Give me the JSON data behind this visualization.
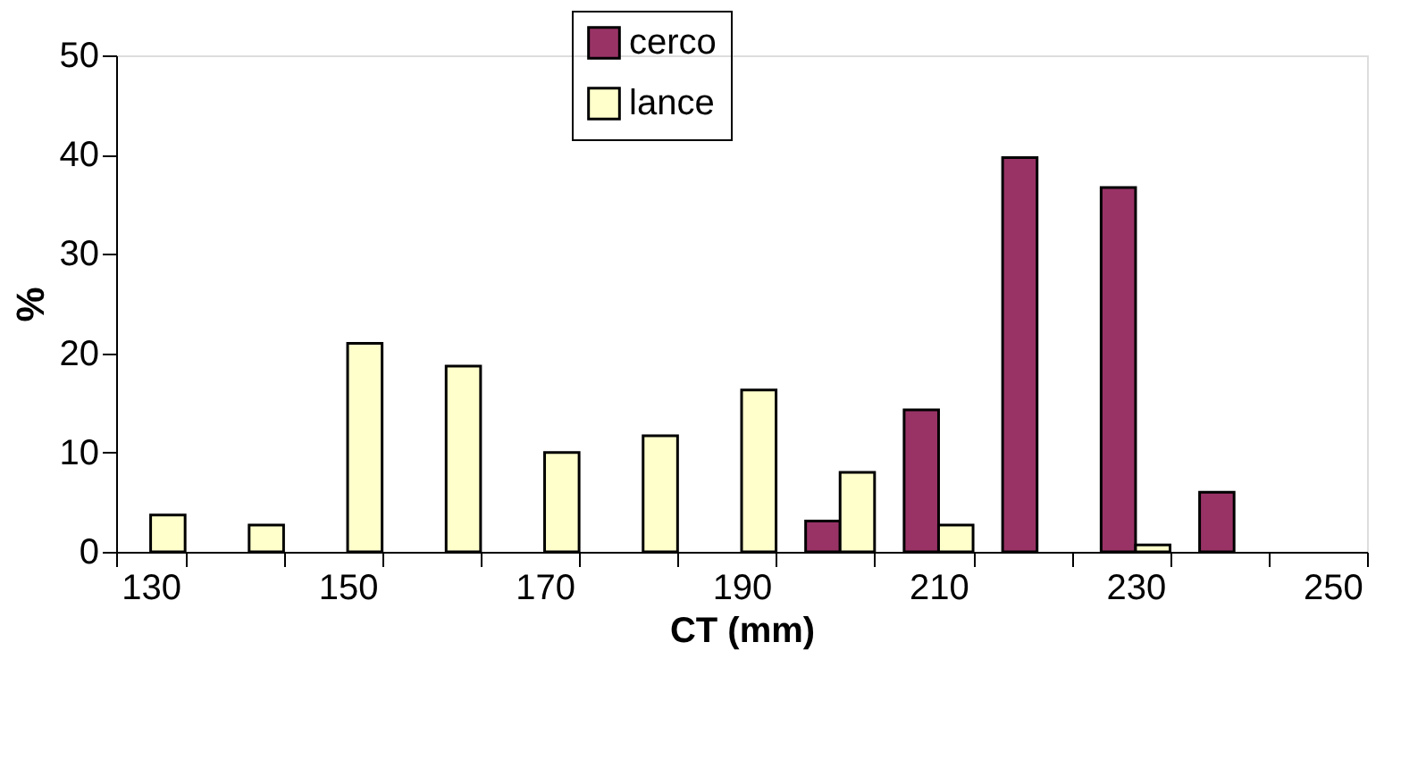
{
  "chart_data": {
    "type": "bar",
    "xlabel": "CT (mm)",
    "ylabel": "%",
    "categories": [
      "130",
      null,
      "150",
      null,
      "170",
      null,
      "190",
      null,
      "210",
      null,
      "230",
      null,
      "250"
    ],
    "series": [
      {
        "name": "cerco",
        "color": "#993366",
        "values": [
          null,
          null,
          null,
          null,
          null,
          null,
          null,
          3.1,
          14.3,
          39.7,
          36.7,
          6.0,
          null
        ]
      },
      {
        "name": "lance",
        "color": "#ffffcc",
        "values": [
          3.7,
          2.7,
          21.0,
          18.7,
          10.0,
          11.7,
          16.3,
          8.0,
          2.7,
          null,
          0.7,
          null,
          null
        ]
      }
    ],
    "ylim": [
      0,
      50
    ],
    "yticks": [
      0,
      10,
      20,
      30,
      40,
      50
    ],
    "grid": false,
    "legend": "top"
  }
}
